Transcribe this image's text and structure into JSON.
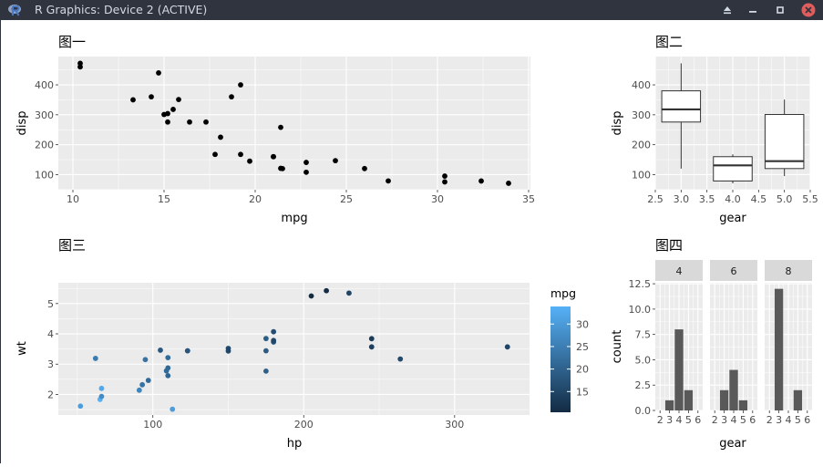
{
  "window": {
    "title": "R Graphics: Device 2 (ACTIVE)"
  },
  "icons": {
    "app": "r-logo-icon",
    "eject": "eject-icon",
    "minimize": "minimize-icon",
    "maximize": "maximize-icon",
    "close": "close-icon"
  },
  "colors": {
    "titlebar": "#2f343f",
    "panel": "#ebebeb",
    "grid": "#ffffff",
    "strip": "#d9d9d9",
    "bar": "#595959",
    "close": "#e05d5d"
  },
  "chart_data": [
    {
      "type": "scatter",
      "title": "图一",
      "xlabel": "mpg",
      "ylabel": "disp",
      "xlim": [
        9.2,
        35.1
      ],
      "ylim": [
        49.6,
        494.6
      ],
      "xticks": [
        10,
        15,
        20,
        25,
        30,
        35
      ],
      "yticks": [
        100,
        200,
        300,
        400
      ],
      "grid": true,
      "points": [
        [
          21,
          160
        ],
        [
          21,
          160
        ],
        [
          22.8,
          108
        ],
        [
          21.4,
          258
        ],
        [
          18.7,
          360
        ],
        [
          18.1,
          225
        ],
        [
          14.3,
          360
        ],
        [
          24.4,
          146.7
        ],
        [
          22.8,
          140.8
        ],
        [
          19.2,
          167.6
        ],
        [
          17.8,
          167.6
        ],
        [
          16.4,
          275.8
        ],
        [
          17.3,
          275.8
        ],
        [
          15.2,
          275.8
        ],
        [
          10.4,
          472
        ],
        [
          10.4,
          460
        ],
        [
          14.7,
          440
        ],
        [
          32.4,
          78.7
        ],
        [
          30.4,
          75.7
        ],
        [
          33.9,
          71.1
        ],
        [
          21.5,
          120.1
        ],
        [
          15.5,
          318
        ],
        [
          15.2,
          304
        ],
        [
          13.3,
          350
        ],
        [
          19.2,
          400
        ],
        [
          27.3,
          79
        ],
        [
          26,
          120.3
        ],
        [
          30.4,
          95.1
        ],
        [
          15.8,
          351
        ],
        [
          19.7,
          145
        ],
        [
          15,
          301
        ],
        [
          21.4,
          121
        ]
      ]
    },
    {
      "type": "box",
      "title": "图二",
      "xlabel": "gear",
      "ylabel": "disp",
      "xlim": [
        2.5,
        5.5
      ],
      "ylim": [
        49.6,
        494.6
      ],
      "xticks": [
        "2.5",
        "3.0",
        "3.5",
        "4.0",
        "4.5",
        "5.0",
        "5.5"
      ],
      "yticks": [
        100,
        200,
        300,
        400
      ],
      "grid": true,
      "boxes": [
        {
          "x": 3,
          "min": 120.1,
          "q1": 275.8,
          "median": 318,
          "q3": 380,
          "max": 472
        },
        {
          "x": 4,
          "min": 71.1,
          "q1": 78.85,
          "median": 130.9,
          "q3": 160,
          "max": 167.6
        },
        {
          "x": 5,
          "min": 95.1,
          "q1": 120.3,
          "median": 145,
          "q3": 301,
          "max": 351
        }
      ]
    },
    {
      "type": "scatter",
      "title": "图三",
      "xlabel": "hp",
      "ylabel": "wt",
      "xlim": [
        37.35,
        349.65
      ],
      "ylim": [
        1.3217,
        5.6863
      ],
      "xticks": [
        100,
        200,
        300
      ],
      "yticks": [
        2,
        3,
        4,
        5
      ],
      "grid": true,
      "legend": {
        "title": "mpg",
        "ticks": [
          15,
          20,
          25,
          30
        ],
        "range": [
          10.4,
          33.9
        ],
        "placement": "right"
      },
      "points": [
        [
          110,
          2.62,
          21
        ],
        [
          110,
          2.875,
          21
        ],
        [
          93,
          2.32,
          22.8
        ],
        [
          110,
          3.215,
          21.4
        ],
        [
          175,
          3.44,
          18.7
        ],
        [
          105,
          3.46,
          18.1
        ],
        [
          245,
          3.57,
          14.3
        ],
        [
          62,
          3.19,
          24.4
        ],
        [
          95,
          3.15,
          22.8
        ],
        [
          123,
          3.44,
          19.2
        ],
        [
          123,
          3.44,
          17.8
        ],
        [
          180,
          4.07,
          16.4
        ],
        [
          180,
          3.73,
          17.3
        ],
        [
          180,
          3.78,
          15.2
        ],
        [
          205,
          5.25,
          10.4
        ],
        [
          215,
          5.424,
          10.4
        ],
        [
          230,
          5.345,
          14.7
        ],
        [
          66,
          2.2,
          32.4
        ],
        [
          52,
          1.615,
          30.4
        ],
        [
          65,
          1.835,
          33.9
        ],
        [
          97,
          2.465,
          21.5
        ],
        [
          150,
          3.52,
          15.5
        ],
        [
          150,
          3.435,
          15.2
        ],
        [
          245,
          3.84,
          13.3
        ],
        [
          175,
          3.845,
          19.2
        ],
        [
          66,
          1.935,
          27.3
        ],
        [
          91,
          2.14,
          26
        ],
        [
          113,
          1.513,
          30.4
        ],
        [
          264,
          3.17,
          15.8
        ],
        [
          175,
          2.77,
          19.7
        ],
        [
          335,
          3.57,
          15
        ],
        [
          109,
          2.78,
          21.4
        ]
      ]
    },
    {
      "type": "bar",
      "title": "图四",
      "xlabel": "gear",
      "ylabel": "count",
      "xlim": [
        1.5,
        6.5
      ],
      "ylim": [
        0,
        12.6
      ],
      "xticks": [
        2,
        3,
        4,
        5,
        6
      ],
      "yticks": [
        "0.0",
        "2.5",
        "5.0",
        "7.5",
        "10.0",
        "12.5"
      ],
      "grid": true,
      "facets": [
        {
          "label": "4",
          "bars": [
            [
              3,
              1
            ],
            [
              4,
              8
            ],
            [
              5,
              2
            ]
          ]
        },
        {
          "label": "6",
          "bars": [
            [
              3,
              2
            ],
            [
              4,
              4
            ],
            [
              5,
              1
            ]
          ]
        },
        {
          "label": "8",
          "bars": [
            [
              3,
              12
            ],
            [
              5,
              2
            ]
          ]
        }
      ]
    }
  ]
}
